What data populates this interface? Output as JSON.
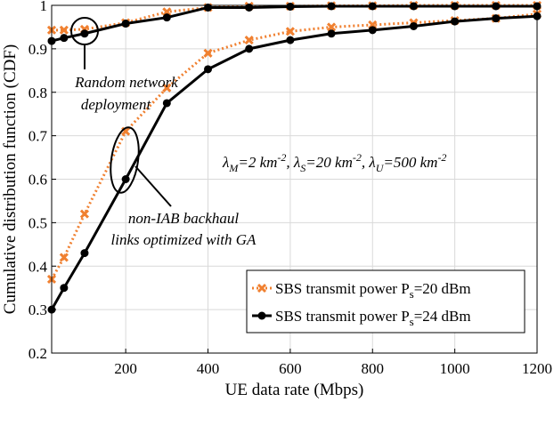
{
  "chart_data": {
    "type": "line",
    "xlabel": "UE data rate (Mbps)",
    "ylabel": "Cumulative distribution function (CDF)",
    "xlim": [
      20,
      1200
    ],
    "ylim": [
      0.2,
      1.0
    ],
    "xticks": [
      200,
      400,
      600,
      800,
      1000,
      1200
    ],
    "yticks": [
      0.2,
      0.3,
      0.4,
      0.5,
      0.6,
      0.7,
      0.8,
      0.9,
      1.0
    ],
    "xtick_labels": [
      "200",
      "400",
      "600",
      "800",
      "1000",
      "1200"
    ],
    "ytick_labels": [
      "0.2",
      "0.3",
      "0.4",
      "0.5",
      "0.6",
      "0.7",
      "0.8",
      "0.9",
      "1"
    ],
    "grid": true,
    "legend_position": "bottom-right",
    "series": [
      {
        "name": "SBS transmit power P_s=20 dBm",
        "legend_main": "SBS transmit power P",
        "legend_sub": "s",
        "legend_tail": "=20 dBm",
        "color": "#F08030",
        "marker": "x",
        "style": "dotted",
        "x": [
          20,
          50,
          100,
          200,
          300,
          400,
          500,
          600,
          700,
          800,
          900,
          1000,
          1100,
          1200
        ],
        "y": [
          0.37,
          0.42,
          0.52,
          0.71,
          0.81,
          0.89,
          0.92,
          0.94,
          0.95,
          0.955,
          0.96,
          0.965,
          0.97,
          0.98
        ],
        "y2": [
          0.943,
          0.943,
          0.945,
          0.96,
          0.985,
          0.995,
          0.998,
          0.998,
          0.999,
          0.999,
          1.0,
          1.0,
          1.0,
          1.0
        ]
      },
      {
        "name": "SBS transmit power P_s=24 dBm",
        "legend_main": "SBS transmit power P",
        "legend_sub": "s",
        "legend_tail": "=24 dBm",
        "color": "#000000",
        "marker": "o",
        "style": "solid",
        "x": [
          20,
          50,
          100,
          200,
          300,
          400,
          500,
          600,
          700,
          800,
          900,
          1000,
          1100,
          1200
        ],
        "y": [
          0.3,
          0.35,
          0.43,
          0.6,
          0.775,
          0.853,
          0.9,
          0.92,
          0.935,
          0.943,
          0.952,
          0.963,
          0.97,
          0.975
        ],
        "y2": [
          0.918,
          0.925,
          0.935,
          0.958,
          0.972,
          0.995,
          0.995,
          0.997,
          0.998,
          0.998,
          0.998,
          0.998,
          0.998,
          0.998
        ]
      }
    ],
    "annotations": {
      "formula_parts": [
        "λ",
        "M",
        "=2 km",
        "-2",
        ", λ",
        "S",
        "=20 km",
        "-2",
        ", λ",
        "U",
        "=500 km",
        "-2"
      ],
      "random_line1": "Random network",
      "random_line2": "deployment",
      "niab_line1": "non-IAB backhaul",
      "niab_line2": "links optimized with GA"
    }
  }
}
